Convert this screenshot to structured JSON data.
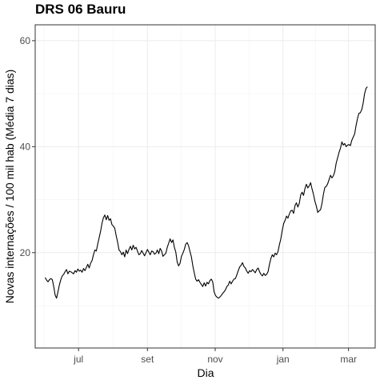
{
  "chart_data": {
    "type": "line",
    "title": "DRS 06 Bauru",
    "xlabel": "Dia",
    "ylabel": "Novas internações / 100 mil hab (Média 7 dias)",
    "x_start": "2020-06-01",
    "x_end": "2021-03-18",
    "x_ticks": [
      {
        "label": "jul",
        "date": "2020-07-01"
      },
      {
        "label": "set",
        "date": "2020-09-01"
      },
      {
        "label": "nov",
        "date": "2020-11-01"
      },
      {
        "label": "jan",
        "date": "2021-01-01"
      },
      {
        "label": "mar",
        "date": "2021-03-01"
      }
    ],
    "y_ticks": [
      20,
      40,
      60
    ],
    "ylim": [
      2,
      63
    ],
    "xlim": [
      "2020-05-23",
      "2021-03-25"
    ],
    "grid": true,
    "series": [
      {
        "values": [
          15.3,
          14.8,
          14.5,
          14.9,
          15.1,
          14.9,
          13.6,
          12.0,
          11.4,
          12.6,
          13.9,
          14.9,
          15.6,
          15.9,
          16.4,
          16.8,
          16.0,
          16.5,
          16.4,
          16.2,
          16.0,
          16.6,
          16.3,
          16.9,
          16.5,
          16.7,
          16.3,
          17.0,
          16.6,
          17.2,
          17.8,
          17.1,
          18.0,
          18.5,
          19.6,
          20.5,
          20.3,
          21.6,
          22.8,
          24.0,
          25.5,
          26.6,
          27.1,
          26.2,
          27.0,
          26.1,
          26.4,
          25.3,
          25.0,
          24.6,
          23.2,
          22.0,
          20.5,
          20.2,
          19.6,
          20.1,
          19.2,
          20.5,
          19.8,
          20.6,
          21.2,
          20.5,
          21.4,
          20.7,
          21.0,
          20.3,
          19.6,
          19.8,
          20.4,
          19.9,
          19.4,
          20.0,
          20.6,
          20.1,
          19.6,
          20.3,
          20.2,
          19.7,
          19.9,
          20.5,
          19.8,
          20.8,
          20.3,
          19.3,
          19.6,
          19.9,
          21.0,
          21.8,
          22.6,
          21.9,
          22.4,
          21.0,
          20.1,
          18.2,
          17.5,
          18.0,
          19.3,
          19.9,
          20.6,
          21.6,
          21.9,
          21.3,
          20.2,
          19.2,
          17.5,
          16.2,
          15.0,
          14.6,
          14.9,
          14.4,
          14.0,
          13.6,
          14.3,
          13.7,
          14.4,
          14.1,
          14.7,
          15.0,
          14.5,
          12.6,
          11.9,
          11.6,
          11.4,
          11.6,
          11.9,
          12.3,
          12.6,
          13.0,
          13.6,
          13.9,
          14.6,
          14.1,
          14.6,
          15.0,
          15.1,
          15.8,
          16.6,
          17.3,
          17.6,
          18.1,
          17.4,
          17.1,
          16.5,
          16.1,
          16.6,
          16.4,
          16.8,
          16.5,
          16.2,
          16.8,
          17.1,
          16.4,
          15.9,
          15.6,
          16.1,
          15.7,
          15.9,
          16.4,
          17.8,
          18.9,
          19.6,
          19.2,
          19.9,
          19.6,
          20.2,
          21.5,
          22.6,
          24.2,
          25.5,
          26.1,
          26.9,
          26.5,
          27.3,
          27.9,
          28.0,
          27.4,
          28.9,
          29.4,
          28.6,
          29.3,
          30.9,
          31.4,
          30.8,
          32.1,
          32.9,
          32.2,
          32.6,
          33.2,
          32.0,
          31.0,
          29.7,
          28.8,
          27.6,
          27.9,
          28.1,
          29.3,
          31.0,
          32.3,
          32.5,
          33.0,
          33.8,
          34.6,
          34.1,
          34.5,
          35.3,
          36.9,
          37.9,
          38.9,
          39.7,
          40.9,
          40.3,
          40.6,
          40.0,
          40.3,
          40.4,
          40.2,
          41.2,
          41.8,
          42.4,
          44.0,
          45.3,
          46.3,
          46.4,
          47.0,
          48.2,
          50.0,
          51.0,
          51.3
        ]
      }
    ]
  }
}
